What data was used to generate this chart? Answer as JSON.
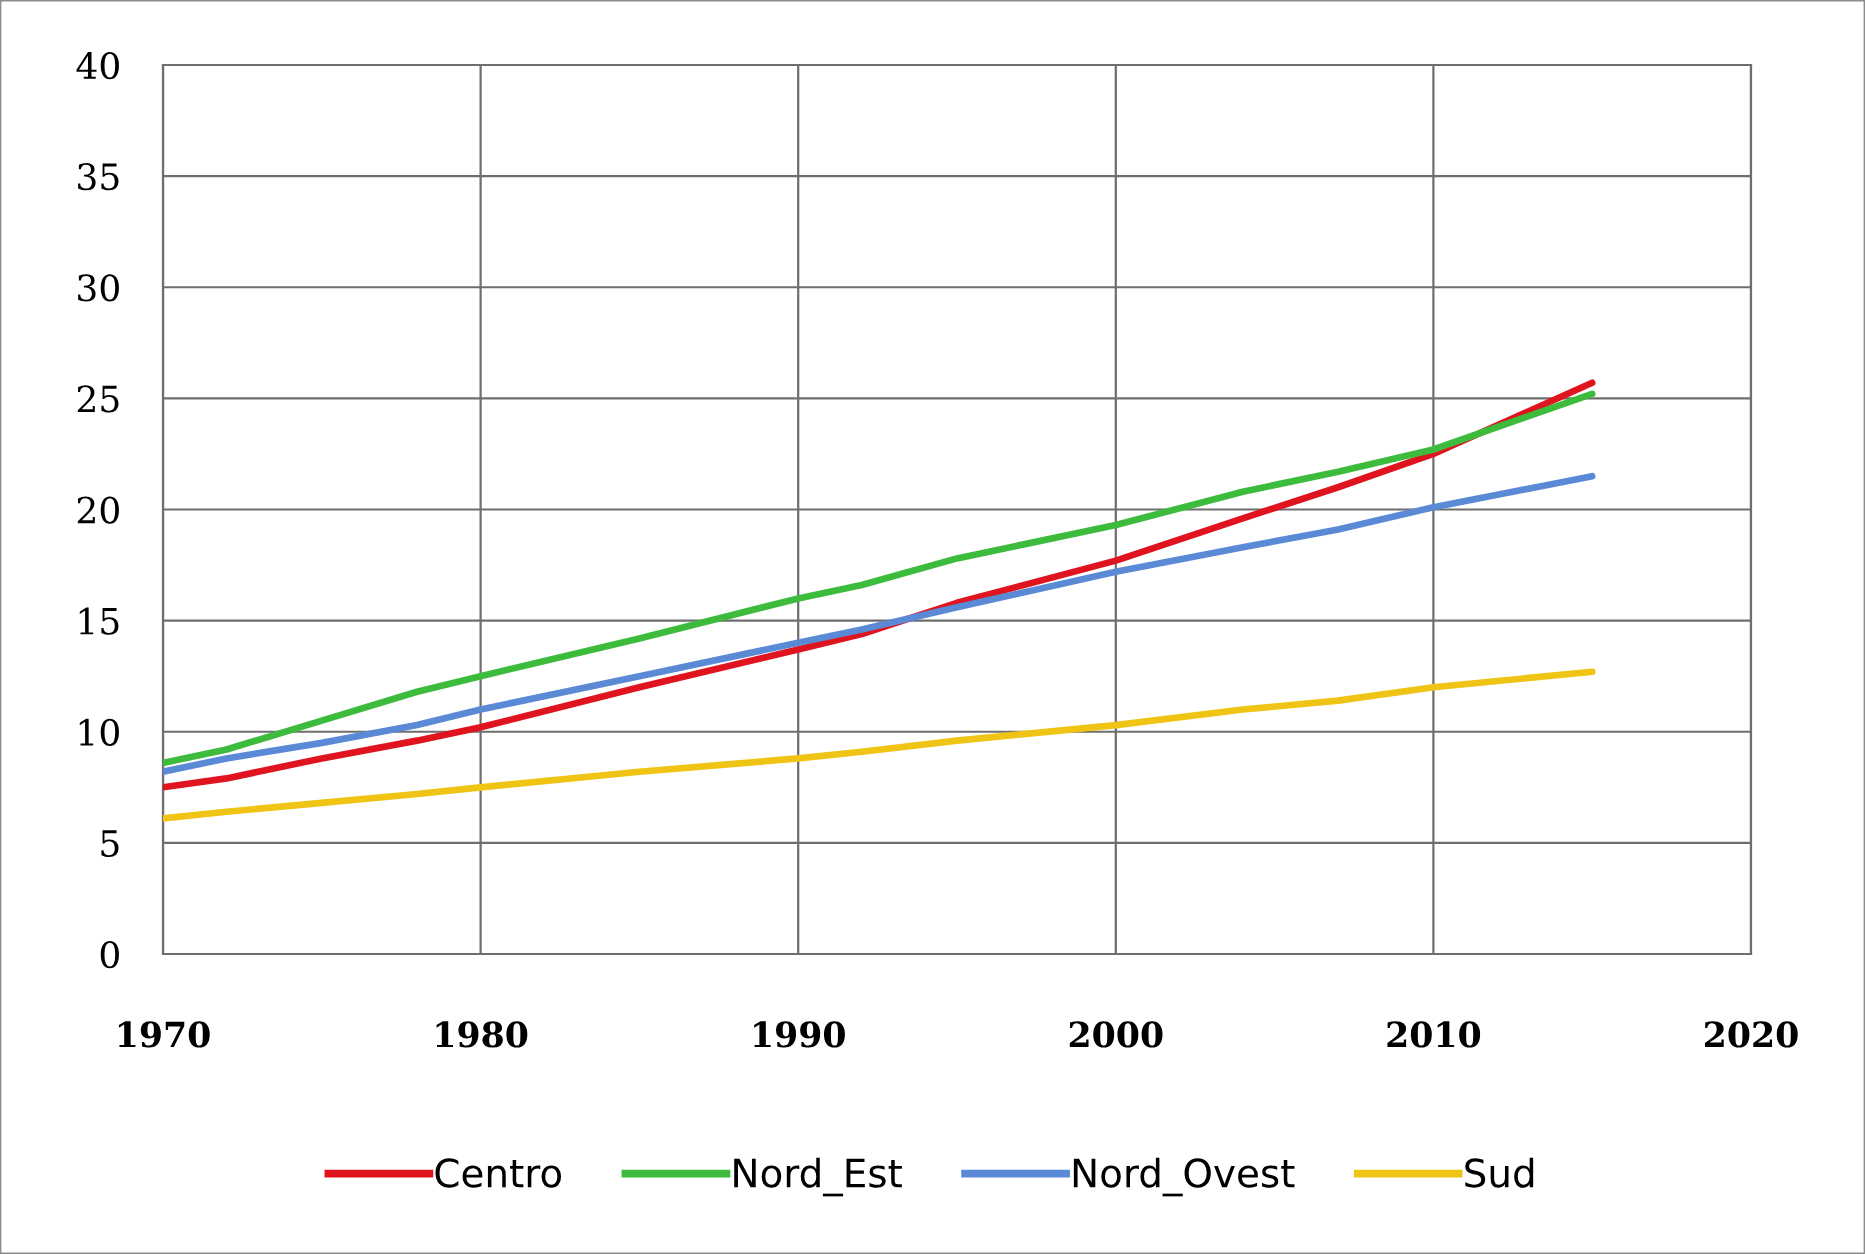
{
  "chart_data": {
    "type": "line",
    "x": [
      1970,
      1972,
      1975,
      1978,
      1980,
      1985,
      1990,
      1992,
      1995,
      2000,
      2004,
      2007,
      2010,
      2015
    ],
    "series": [
      {
        "name": "Centro",
        "color": "#e0141e",
        "values": [
          7.5,
          7.9,
          8.8,
          9.6,
          10.2,
          12.0,
          13.7,
          14.4,
          15.8,
          17.7,
          19.6,
          21.0,
          22.5,
          25.7
        ]
      },
      {
        "name": "Nord_Est",
        "color": "#3dbb3d",
        "values": [
          8.6,
          9.2,
          10.5,
          11.8,
          12.5,
          14.2,
          16.0,
          16.6,
          17.8,
          19.3,
          20.8,
          21.7,
          22.7,
          25.2
        ]
      },
      {
        "name": "Nord_Ovest",
        "color": "#5a8ad6",
        "values": [
          8.2,
          8.8,
          9.5,
          10.3,
          11.0,
          12.5,
          14.0,
          14.6,
          15.6,
          17.2,
          18.3,
          19.1,
          20.1,
          21.5
        ]
      },
      {
        "name": "Sud",
        "color": "#f0c414",
        "values": [
          6.1,
          6.4,
          6.8,
          7.2,
          7.5,
          8.2,
          8.8,
          9.1,
          9.6,
          10.3,
          11.0,
          11.4,
          12.0,
          12.7
        ]
      }
    ],
    "xlim": [
      1970,
      2020
    ],
    "xticks": [
      1970,
      1980,
      1990,
      2000,
      2010,
      2020
    ],
    "ylim": [
      0,
      40
    ],
    "yticks": [
      0,
      5,
      10,
      15,
      20,
      25,
      30,
      35,
      40
    ],
    "grid": true,
    "legend": "bottom",
    "marker": "none",
    "line_style": "solid"
  }
}
